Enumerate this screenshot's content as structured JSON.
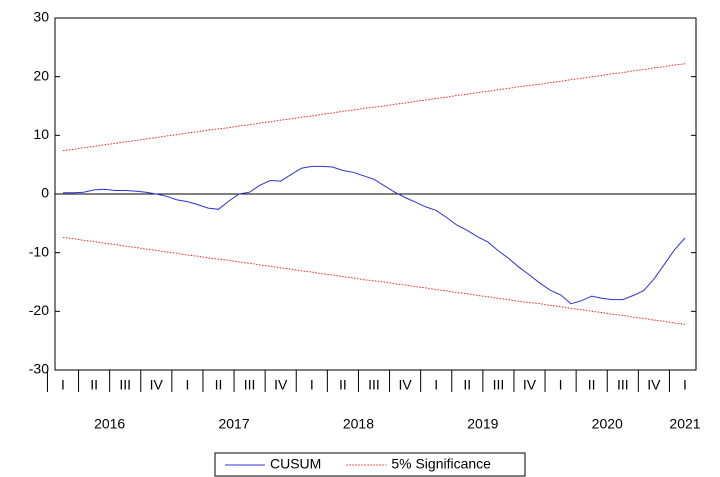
{
  "chart_data": {
    "type": "line",
    "categories": [
      "I",
      null,
      null,
      "II",
      null,
      null,
      "III",
      null,
      null,
      "IV",
      null,
      null,
      "I",
      null,
      null,
      "II",
      null,
      null,
      "III",
      null,
      null,
      "IV",
      null,
      null,
      "I",
      null,
      null,
      "II",
      null,
      null,
      "III",
      null,
      null,
      "IV",
      null,
      null,
      "I",
      null,
      null,
      "II",
      null,
      null,
      "III",
      null,
      null,
      "IV",
      null,
      null,
      "I",
      null,
      null,
      "II",
      null,
      null,
      "III",
      null,
      null,
      "IV",
      null,
      null,
      "I"
    ],
    "year_labels": [
      "2016",
      "2017",
      "2018",
      "2019",
      "2020",
      "2021"
    ],
    "series": [
      {
        "name": "CUSUM",
        "color": "#3030d8",
        "style": "solid",
        "values": [
          0.2,
          0.2,
          0.3,
          0.7,
          0.8,
          0.6,
          0.6,
          0.5,
          0.3,
          0,
          -0.4,
          -1.0,
          -1.3,
          -1.8,
          -2.4,
          -2.6,
          -1.2,
          0.0,
          0.3,
          1.5,
          2.3,
          2.2,
          3.3,
          4.4,
          4.7,
          4.7,
          4.6,
          4.0,
          3.7,
          3.1,
          2.5,
          1.4,
          0.3,
          -0.6,
          -1.4,
          -2.2,
          -2.8,
          -4.0,
          -5.3,
          -6.2,
          -7.3,
          -8.2,
          -9.7,
          -11.0,
          -12.5,
          -13.8,
          -15.2,
          -16.4,
          -17.2,
          -18.7,
          -18.2,
          -17.4,
          -17.8,
          -18.0,
          -18.0,
          -17.3,
          -16.5,
          -14.5,
          -12.0,
          -9.5,
          -7.5
        ]
      },
      {
        "name": "5% Significance",
        "color": "#ff2020",
        "style": "dotted",
        "values": [
          7.4,
          7.6,
          7.9,
          8.1,
          8.4,
          8.6,
          8.9,
          9.1,
          9.4,
          9.6,
          9.9,
          10.1,
          10.4,
          10.6,
          10.9,
          11.1,
          11.3,
          11.6,
          11.8,
          12.1,
          12.3,
          12.6,
          12.8,
          13.1,
          13.3,
          13.6,
          13.8,
          14.1,
          14.3,
          14.6,
          14.8,
          15.0,
          15.3,
          15.5,
          15.8,
          16.0,
          16.3,
          16.5,
          16.8,
          17.0,
          17.3,
          17.5,
          17.8,
          18.0,
          18.3,
          18.5,
          18.7,
          19.0,
          19.2,
          19.5,
          19.7,
          20.0,
          20.2,
          20.5,
          20.7,
          21.0,
          21.2,
          21.5,
          21.7,
          22.0,
          22.2
        ]
      },
      {
        "color": "#ff2020",
        "style": "dotted",
        "values": [
          -7.4,
          -7.6,
          -7.9,
          -8.1,
          -8.4,
          -8.6,
          -8.9,
          -9.1,
          -9.4,
          -9.6,
          -9.9,
          -10.1,
          -10.4,
          -10.6,
          -10.9,
          -11.1,
          -11.3,
          -11.6,
          -11.8,
          -12.1,
          -12.3,
          -12.6,
          -12.8,
          -13.1,
          -13.3,
          -13.6,
          -13.8,
          -14.1,
          -14.3,
          -14.6,
          -14.8,
          -15.0,
          -15.3,
          -15.5,
          -15.8,
          -16.0,
          -16.3,
          -16.5,
          -16.8,
          -17.0,
          -17.3,
          -17.5,
          -17.8,
          -18.0,
          -18.3,
          -18.5,
          -18.7,
          -19.0,
          -19.2,
          -19.5,
          -19.7,
          -20.0,
          -20.2,
          -20.5,
          -20.7,
          -21.0,
          -21.2,
          -21.5,
          -21.7,
          -22.0,
          -22.2
        ]
      }
    ],
    "ylim": [
      -30,
      30
    ],
    "yticks": [
      -30,
      -20,
      -10,
      0,
      10,
      20,
      30
    ],
    "zero_line": true,
    "legend": "bottom"
  }
}
